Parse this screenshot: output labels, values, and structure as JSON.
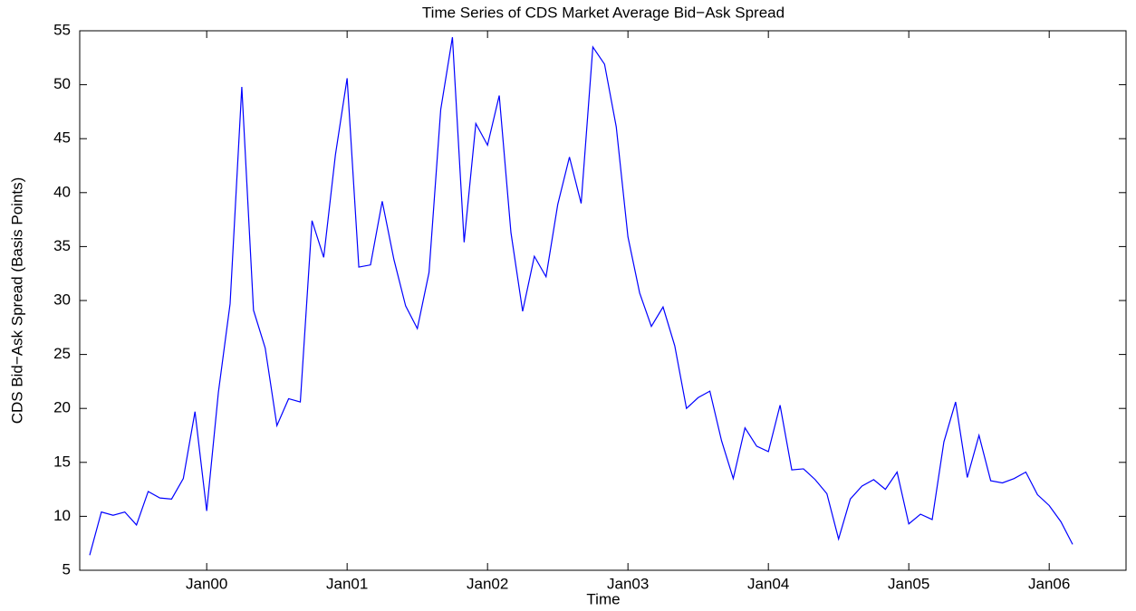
{
  "chart_data": {
    "type": "line",
    "title": "Time Series of CDS Market Average Bid−Ask Spread",
    "x_label": "Time",
    "y_label": "CDS Bid−Ask Spread (Basis Points)",
    "categories": [
      null,
      null,
      null,
      null,
      null,
      null,
      null,
      null,
      null,
      null,
      "Jan00",
      null,
      null,
      null,
      null,
      null,
      null,
      null,
      null,
      null,
      null,
      null,
      "Jan01",
      null,
      null,
      null,
      null,
      null,
      null,
      null,
      null,
      null,
      null,
      null,
      "Jan02",
      null,
      null,
      null,
      null,
      null,
      null,
      null,
      null,
      null,
      null,
      null,
      "Jan03",
      null,
      null,
      null,
      null,
      null,
      null,
      null,
      null,
      null,
      null,
      null,
      "Jan04",
      null,
      null,
      null,
      null,
      null,
      null,
      null,
      null,
      null,
      null,
      null,
      "Jan05",
      null,
      null,
      null,
      null,
      null,
      null,
      null,
      null,
      null,
      null,
      null,
      "Jan06",
      null,
      null
    ],
    "values": [
      6.4,
      10.4,
      10.1,
      10.4,
      9.2,
      12.3,
      11.7,
      11.6,
      13.5,
      19.7,
      10.5,
      21.5,
      29.7,
      49.8,
      29.1,
      25.6,
      18.4,
      20.9,
      20.6,
      37.4,
      34.0,
      43.5,
      50.6,
      33.1,
      33.3,
      39.2,
      33.8,
      29.5,
      27.4,
      32.6,
      47.7,
      54.4,
      35.4,
      46.4,
      44.4,
      49.0,
      36.3,
      29.0,
      34.1,
      32.2,
      38.9,
      43.3,
      39.0,
      53.5,
      51.9,
      46.1,
      35.9,
      30.7,
      27.6,
      29.4,
      25.8,
      20.0,
      21.0,
      21.6,
      17.0,
      13.5,
      18.2,
      16.5,
      16.0,
      20.3,
      14.3,
      14.4,
      13.4,
      12.1,
      7.9,
      11.6,
      12.8,
      13.4,
      12.5,
      14.1,
      9.3,
      10.2,
      9.7,
      16.9,
      20.6,
      13.6,
      17.5,
      13.3,
      13.1,
      13.5,
      14.1,
      12.0,
      11.0,
      9.5,
      7.4
    ],
    "color": "#0000ff",
    "ylim": [
      5,
      55
    ],
    "yticks": [
      5,
      10,
      15,
      20,
      25,
      30,
      35,
      40,
      45,
      50,
      55
    ]
  }
}
